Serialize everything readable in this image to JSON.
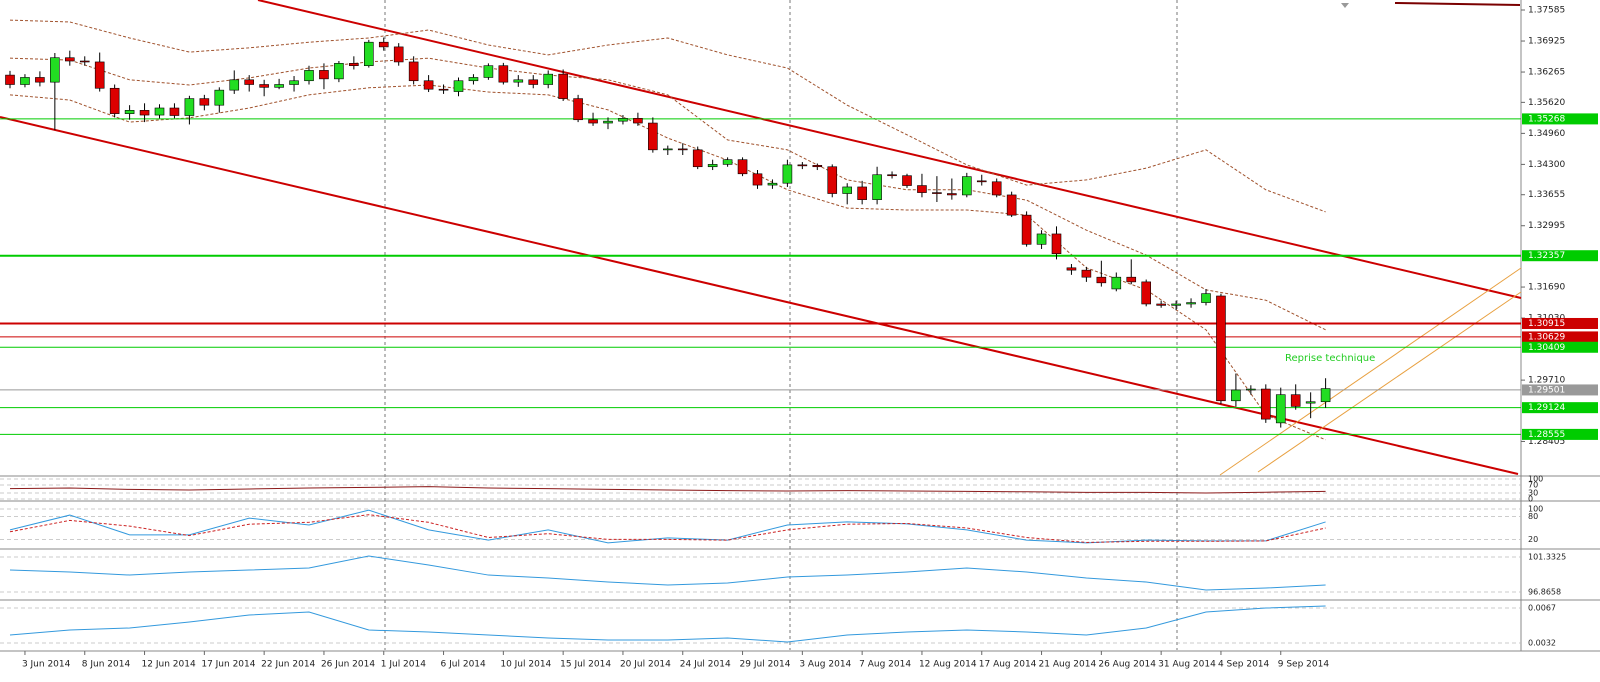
{
  "chart_data": {
    "type": "candlestick",
    "up_color": "#22dd22",
    "down_color": "#dd0000",
    "ylim": [
      1.27691,
      1.37798
    ],
    "yticks": [
      1.37585,
      1.36925,
      1.36265,
      {
        "value": 1.3562,
        "label": "1.35620"
      },
      {
        "value": 1.3496,
        "label": "1.34960"
      },
      {
        "value": 1.343,
        "label": "1.34300"
      },
      1.33655,
      1.32995,
      {
        "value": 1.3169,
        "label": "1.31690"
      },
      {
        "value": 1.3103,
        "label": "1.31030"
      },
      {
        "value": 1.2971,
        "label": "1.29710"
      },
      1.28405
    ],
    "categories": [
      null,
      "3 Jun 2014",
      null,
      null,
      null,
      "8 Jun 2014",
      null,
      null,
      null,
      "12 Jun 2014",
      null,
      null,
      null,
      "17 Jun 2014",
      null,
      null,
      null,
      "22 Jun 2014",
      null,
      null,
      null,
      "26 Jun 2014",
      null,
      null,
      null,
      "1 Jul 2014",
      null,
      null,
      null,
      "6 Jul 2014",
      null,
      null,
      null,
      "10 Jul 2014",
      null,
      null,
      null,
      "15 Jul 2014",
      null,
      null,
      null,
      "20 Jul 2014",
      null,
      null,
      null,
      "24 Jul 2014",
      null,
      null,
      null,
      "29 Jul 2014",
      null,
      null,
      null,
      "3 Aug 2014",
      null,
      null,
      null,
      "7 Aug 2014",
      null,
      null,
      null,
      "12 Aug 2014",
      null,
      null,
      null,
      "17 Aug 2014",
      null,
      null,
      null,
      "21 Aug 2014",
      null,
      null,
      null,
      "26 Aug 2014",
      null,
      null,
      null,
      "31 Aug 2014",
      null,
      null,
      null,
      "4 Sep 2014",
      null,
      null,
      null,
      "9 Sep 2014",
      null,
      null,
      null
    ],
    "ohlc": [
      [
        1.362,
        1.3629,
        1.3592,
        1.36
      ],
      [
        1.36,
        1.3622,
        1.3594,
        1.3615
      ],
      [
        1.3615,
        1.3628,
        1.3596,
        1.3605
      ],
      [
        1.3605,
        1.3667,
        1.3503,
        1.3657
      ],
      [
        1.3657,
        1.3672,
        1.364,
        1.365
      ],
      [
        1.365,
        1.366,
        1.364,
        1.3648
      ],
      [
        1.3648,
        1.3668,
        1.3585,
        1.3592
      ],
      [
        1.3592,
        1.36,
        1.353,
        1.3538
      ],
      [
        1.3538,
        1.3556,
        1.3525,
        1.3545
      ],
      [
        1.3545,
        1.356,
        1.352,
        1.3535
      ],
      [
        1.3535,
        1.3558,
        1.3528,
        1.355
      ],
      [
        1.355,
        1.356,
        1.3528,
        1.3534
      ],
      [
        1.3534,
        1.3576,
        1.3515,
        1.357
      ],
      [
        1.357,
        1.3578,
        1.3545,
        1.3556
      ],
      [
        1.3556,
        1.3594,
        1.354,
        1.3588
      ],
      [
        1.3588,
        1.363,
        1.358,
        1.361
      ],
      [
        1.361,
        1.362,
        1.3585,
        1.36
      ],
      [
        1.36,
        1.361,
        1.3575,
        1.3594
      ],
      [
        1.3594,
        1.3612,
        1.359,
        1.36
      ],
      [
        1.36,
        1.3618,
        1.3585,
        1.3608
      ],
      [
        1.3608,
        1.364,
        1.36,
        1.363
      ],
      [
        1.363,
        1.3645,
        1.359,
        1.3612
      ],
      [
        1.3612,
        1.365,
        1.3605,
        1.3645
      ],
      [
        1.3645,
        1.366,
        1.3632,
        1.364
      ],
      [
        1.364,
        1.3695,
        1.3636,
        1.369
      ],
      [
        1.369,
        1.37,
        1.3672,
        1.368
      ],
      [
        1.368,
        1.3688,
        1.364,
        1.3648
      ],
      [
        1.3648,
        1.366,
        1.36,
        1.3608
      ],
      [
        1.3608,
        1.362,
        1.3584,
        1.359
      ],
      [
        1.359,
        1.36,
        1.358,
        1.3588
      ],
      [
        1.3585,
        1.3615,
        1.3575,
        1.3608
      ],
      [
        1.3608,
        1.3622,
        1.36,
        1.3615
      ],
      [
        1.3615,
        1.3645,
        1.361,
        1.364
      ],
      [
        1.364,
        1.3646,
        1.36,
        1.3605
      ],
      [
        1.3605,
        1.362,
        1.3595,
        1.361
      ],
      [
        1.361,
        1.362,
        1.3592,
        1.36
      ],
      [
        1.36,
        1.363,
        1.3592,
        1.3622
      ],
      [
        1.3622,
        1.3632,
        1.3565,
        1.357
      ],
      [
        1.357,
        1.3578,
        1.352,
        1.3525
      ],
      [
        1.3525,
        1.354,
        1.3512,
        1.3518
      ],
      [
        1.3518,
        1.353,
        1.3505,
        1.3522
      ],
      [
        1.3522,
        1.3535,
        1.3515,
        1.3528
      ],
      [
        1.3528,
        1.354,
        1.3512,
        1.3518
      ],
      [
        1.3518,
        1.353,
        1.3455,
        1.3461
      ],
      [
        1.3461,
        1.347,
        1.345,
        1.3463
      ],
      [
        1.3463,
        1.3475,
        1.345,
        1.3461
      ],
      [
        1.3461,
        1.3468,
        1.342,
        1.3425
      ],
      [
        1.3425,
        1.344,
        1.3418,
        1.343
      ],
      [
        1.343,
        1.3445,
        1.3425,
        1.344
      ],
      [
        1.344,
        1.3445,
        1.3405,
        1.341
      ],
      [
        1.341,
        1.3418,
        1.3378,
        1.3386
      ],
      [
        1.3386,
        1.3398,
        1.3378,
        1.339
      ],
      [
        1.339,
        1.344,
        1.3382,
        1.3429
      ],
      [
        1.3429,
        1.3435,
        1.342,
        1.3428
      ],
      [
        1.3428,
        1.3432,
        1.3418,
        1.3425
      ],
      [
        1.3425,
        1.343,
        1.336,
        1.3368
      ],
      [
        1.3368,
        1.339,
        1.3345,
        1.3382
      ],
      [
        1.3382,
        1.3395,
        1.3345,
        1.3355
      ],
      [
        1.3355,
        1.3425,
        1.3345,
        1.3408
      ],
      [
        1.3408,
        1.3415,
        1.34,
        1.3406
      ],
      [
        1.3406,
        1.341,
        1.338,
        1.3385
      ],
      [
        1.3385,
        1.341,
        1.336,
        1.337
      ],
      [
        1.337,
        1.3405,
        1.335,
        1.3368
      ],
      [
        1.3368,
        1.34,
        1.3355,
        1.3365
      ],
      [
        1.3365,
        1.3412,
        1.336,
        1.3404
      ],
      [
        1.3395,
        1.3408,
        1.3385,
        1.3393
      ],
      [
        1.3393,
        1.34,
        1.336,
        1.3365
      ],
      [
        1.3365,
        1.3372,
        1.3318,
        1.3322
      ],
      [
        1.3322,
        1.333,
        1.3255,
        1.326
      ],
      [
        1.326,
        1.329,
        1.325,
        1.3282
      ],
      [
        1.3282,
        1.3298,
        1.3228,
        1.324
      ],
      [
        1.321,
        1.3218,
        1.3195,
        1.3205
      ],
      [
        1.3205,
        1.3212,
        1.318,
        1.319
      ],
      [
        1.319,
        1.3225,
        1.317,
        1.3178
      ],
      [
        1.3165,
        1.32,
        1.316,
        1.319
      ],
      [
        1.319,
        1.3228,
        1.3175,
        1.318
      ],
      [
        1.318,
        1.3185,
        1.3128,
        1.3133
      ],
      [
        1.3133,
        1.314,
        1.3125,
        1.313
      ],
      [
        1.313,
        1.314,
        1.312,
        1.3133
      ],
      [
        1.3133,
        1.3145,
        1.3125,
        1.3136
      ],
      [
        1.3136,
        1.3165,
        1.313,
        1.3155
      ],
      [
        1.315,
        1.3155,
        1.292,
        1.2927
      ],
      [
        1.2927,
        1.2985,
        1.2915,
        1.295
      ],
      [
        1.295,
        1.296,
        1.294,
        1.2952
      ],
      [
        1.2952,
        1.2962,
        1.288,
        1.2888
      ],
      [
        1.288,
        1.2955,
        1.287,
        1.294
      ],
      [
        1.294,
        1.2962,
        1.2908,
        1.2915
      ],
      [
        1.2922,
        1.2945,
        1.289,
        1.2925
      ],
      [
        1.2925,
        1.2975,
        1.2912,
        1.2953
      ]
    ],
    "bands": {
      "color": "#a0522d",
      "upper": [
        1.3737,
        1.3733,
        1.3699,
        1.3669,
        1.3678,
        1.369,
        1.3699,
        1.3716,
        1.3684,
        1.3663,
        1.3684,
        1.3699,
        1.3663,
        1.3635,
        1.3556,
        1.3493,
        1.3429,
        1.3386,
        1.3397,
        1.3422,
        1.3461,
        1.3376,
        1.3329
      ],
      "middle": [
        1.3656,
        1.3652,
        1.361,
        1.3599,
        1.3614,
        1.3635,
        1.3648,
        1.3656,
        1.3635,
        1.362,
        1.361,
        1.3578,
        1.3482,
        1.3461,
        1.3397,
        1.3376,
        1.3376,
        1.3354,
        1.329,
        1.3237,
        1.3163,
        1.3141,
        1.3078
      ],
      "lower": [
        1.3578,
        1.3567,
        1.352,
        1.3529,
        1.355,
        1.3578,
        1.3593,
        1.3599,
        1.3584,
        1.3578,
        1.3546,
        1.3486,
        1.3439,
        1.3376,
        1.3337,
        1.3333,
        1.3333,
        1.3322,
        1.321,
        1.3163,
        1.3078,
        1.2897,
        1.2844
      ]
    },
    "levels": [
      {
        "value": 1.35268,
        "color": "#00cc00"
      },
      {
        "value": 1.32357,
        "color": "#00cc00"
      },
      {
        "value": 1.30915,
        "color": "#cc0000"
      },
      {
        "value": 1.30629,
        "color": "#cc0000"
      },
      {
        "value": 1.30409,
        "color": "#00cc00"
      },
      {
        "value": 1.29501,
        "color": "#999999"
      },
      {
        "value": 1.29124,
        "color": "#00cc00"
      },
      {
        "value": 1.28555,
        "color": "#00cc00"
      }
    ],
    "annotation": "Reprise technique",
    "indicators": [
      {
        "ylim": [
          0,
          100
        ],
        "yticks": [
          100,
          70,
          30,
          0
        ],
        "series": [
          {
            "color": "#8b1a1a",
            "values": [
              52,
              55,
              48,
              45,
              50,
              55,
              58,
              62,
              55,
              52,
              48,
              45,
              42,
              40,
              42,
              40,
              38,
              36,
              33,
              33,
              30,
              34,
              38
            ]
          }
        ]
      },
      {
        "ylim": [
          0,
          100
        ],
        "yticks": [
          100,
          80,
          20
        ],
        "series": [
          {
            "color": "#3399dd",
            "values": [
              45,
              84,
              32,
              32,
              76,
              58,
              97,
              45,
              18,
              45,
              11,
              24,
              18,
              58,
              66,
              61,
              45,
              18,
              11,
              18,
              16,
              16,
              66
            ]
          },
          {
            "color": "#cc2222",
            "dashed": true,
            "values": [
              40,
              70,
              55,
              30,
              60,
              65,
              85,
              65,
              25,
              35,
              20,
              20,
              18,
              45,
              60,
              62,
              50,
              25,
              12,
              15,
              15,
              16,
              50
            ]
          }
        ]
      },
      {
        "ylim": [
          96.1,
          102.23
        ],
        "yticks": [
          101.3325,
          96.8658
        ],
        "series": [
          {
            "color": "#3399dd",
            "values": [
              99.67,
              99.42,
              99.03,
              99.42,
              99.67,
              99.93,
              101.46,
              100.31,
              99.03,
              98.65,
              98.14,
              97.76,
              98.01,
              98.78,
              99.03,
              99.42,
              99.93,
              99.42,
              98.65,
              98.14,
              97.12,
              97.37,
              97.76
            ]
          }
        ]
      },
      {
        "ylim": [
          0.0025,
          0.0074
        ],
        "yticks": [
          0.0067,
          0.0032
        ],
        "series": [
          {
            "color": "#3399dd",
            "values": [
              0.004,
              0.0045,
              0.0047,
              0.0053,
              0.006,
              0.0063,
              0.0045,
              0.0043,
              0.004,
              0.0037,
              0.0035,
              0.0035,
              0.0037,
              0.0033,
              0.004,
              0.0043,
              0.0045,
              0.0043,
              0.004,
              0.0047,
              0.0063,
              0.0067,
              0.0069
            ]
          }
        ]
      }
    ]
  }
}
